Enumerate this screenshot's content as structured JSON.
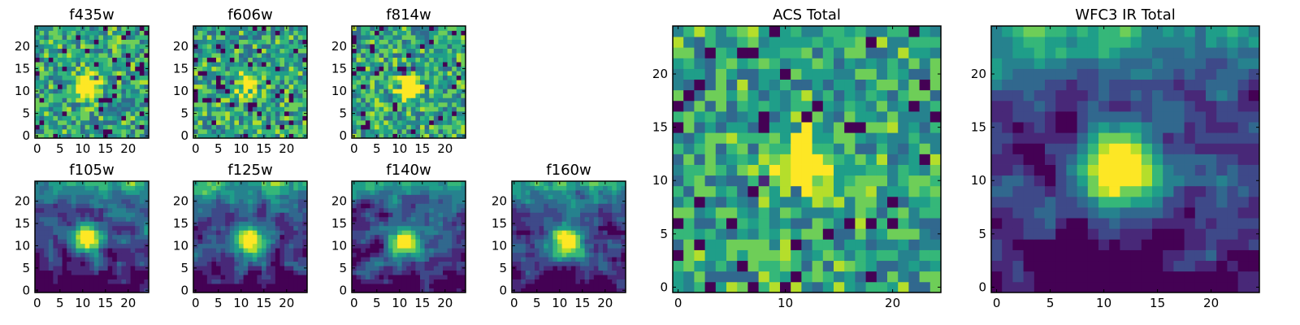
{
  "colormap": [
    "#440154",
    "#482878",
    "#3e4989",
    "#31688e",
    "#26828e",
    "#1f9e89",
    "#35b779",
    "#6ece58",
    "#b5de2b",
    "#fde725"
  ],
  "chart_data": [
    {
      "type": "heatmap",
      "title": "f435w",
      "x_ticks": [
        0,
        5,
        10,
        15,
        20
      ],
      "y_ticks": [
        0,
        5,
        10,
        15,
        20
      ],
      "xlim": [
        0,
        25
      ],
      "ylim": [
        0,
        25
      ],
      "grid": false,
      "source_center": [
        11.5,
        11.5
      ],
      "style": "noisy"
    },
    {
      "type": "heatmap",
      "title": "f606w",
      "x_ticks": [
        0,
        5,
        10,
        15,
        20
      ],
      "y_ticks": [
        0,
        5,
        10,
        15,
        20
      ],
      "xlim": [
        0,
        25
      ],
      "ylim": [
        0,
        25
      ],
      "grid": false,
      "source_center": [
        12.0,
        12.0
      ],
      "style": "noisy"
    },
    {
      "type": "heatmap",
      "title": "f814w",
      "x_ticks": [
        0,
        5,
        10,
        15,
        20
      ],
      "y_ticks": [
        0,
        5,
        10,
        15,
        20
      ],
      "xlim": [
        0,
        25
      ],
      "ylim": [
        0,
        25
      ],
      "grid": false,
      "source_center": [
        12.5,
        11.5
      ],
      "style": "noisy"
    },
    {
      "type": "heatmap",
      "title": "f105w",
      "x_ticks": [
        0,
        5,
        10,
        15,
        20
      ],
      "y_ticks": [
        0,
        5,
        10,
        15,
        20
      ],
      "xlim": [
        0,
        25
      ],
      "ylim": [
        0,
        25
      ],
      "grid": false,
      "source_center": [
        11.5,
        12.5
      ],
      "style": "smooth"
    },
    {
      "type": "heatmap",
      "title": "f125w",
      "x_ticks": [
        0,
        5,
        10,
        15,
        20
      ],
      "y_ticks": [
        0,
        5,
        10,
        15,
        20
      ],
      "xlim": [
        0,
        25
      ],
      "ylim": [
        0,
        25
      ],
      "grid": false,
      "source_center": [
        12.5,
        11.5
      ],
      "style": "smooth"
    },
    {
      "type": "heatmap",
      "title": "f140w",
      "x_ticks": [
        0,
        5,
        10,
        15,
        20
      ],
      "y_ticks": [
        0,
        5,
        10,
        15,
        20
      ],
      "xlim": [
        0,
        25
      ],
      "ylim": [
        0,
        25
      ],
      "grid": false,
      "source_center": [
        12.0,
        11.5
      ],
      "style": "smooth"
    },
    {
      "type": "heatmap",
      "title": "f160w",
      "x_ticks": [
        0,
        5,
        10,
        15,
        20
      ],
      "y_ticks": [
        0,
        5,
        10,
        15,
        20
      ],
      "xlim": [
        0,
        25
      ],
      "ylim": [
        0,
        25
      ],
      "grid": false,
      "source_center": [
        12.0,
        11.5
      ],
      "style": "smooth"
    },
    {
      "type": "heatmap",
      "title": "ACS Total",
      "x_ticks": [
        0,
        10,
        20
      ],
      "y_ticks": [
        0,
        5,
        10,
        15,
        20
      ],
      "xlim": [
        0,
        25
      ],
      "ylim": [
        0,
        25
      ],
      "grid": false,
      "source_center": [
        12.0,
        12.0
      ],
      "style": "noisy"
    },
    {
      "type": "heatmap",
      "title": "WFC3 IR Total",
      "x_ticks": [
        0,
        5,
        10,
        15,
        20
      ],
      "y_ticks": [
        0,
        5,
        10,
        15,
        20
      ],
      "xlim": [
        0,
        25
      ],
      "ylim": [
        0,
        25
      ],
      "grid": false,
      "source_center": [
        12.0,
        12.0
      ],
      "style": "smooth"
    }
  ]
}
